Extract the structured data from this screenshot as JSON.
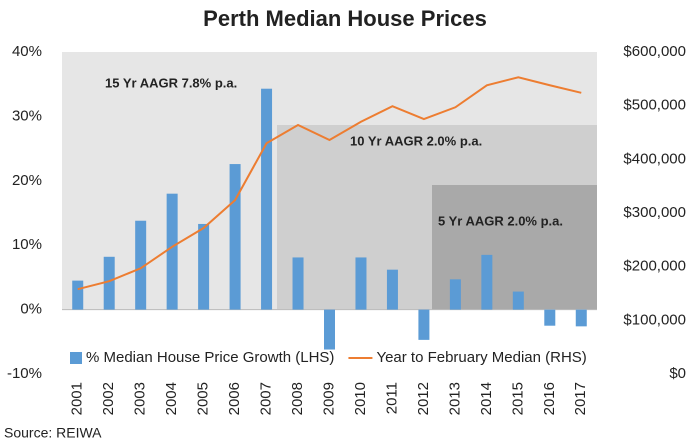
{
  "chart_data": {
    "type": "bar_line",
    "title": "Perth Median House Prices",
    "source": "Source: REIWA",
    "annotations": [
      "15 Yr AAGR 7.8% p.a.",
      "10 Yr AAGR 2.0% p.a.",
      "5 Yr AAGR 2.0% p.a."
    ],
    "categories": [
      "2001",
      "2002",
      "2003",
      "2004",
      "2005",
      "2006",
      "2007",
      "2008",
      "2009",
      "2010",
      "2011",
      "2012",
      "2013",
      "2014",
      "2015",
      "2016",
      "2017"
    ],
    "series": [
      {
        "name": "% Median House Price Growth (LHS)",
        "type": "bar",
        "color": "#5b9bd5",
        "values": [
          4.5,
          8.2,
          13.8,
          18.0,
          13.3,
          22.6,
          34.3,
          8.1,
          -6.2,
          8.1,
          6.2,
          -4.7,
          4.7,
          8.5,
          2.8,
          -2.5,
          -2.6
        ]
      },
      {
        "name": "Year to February Median (RHS)",
        "type": "line",
        "axis": "y2",
        "color": "#ed7d31",
        "values": [
          158000,
          173000,
          197000,
          237000,
          272000,
          324000,
          430000,
          464000,
          436000,
          470000,
          499000,
          475000,
          497000,
          538000,
          553000,
          538000,
          524000
        ]
      }
    ],
    "ylim": [
      -10,
      40
    ],
    "yticks": [
      {
        "value": -10,
        "label": "-10%"
      },
      {
        "value": 0,
        "label": "0%"
      },
      {
        "value": 10,
        "label": "10%"
      },
      {
        "value": 20,
        "label": "20%"
      },
      {
        "value": 30,
        "label": "30%"
      },
      {
        "value": 40,
        "label": "40%"
      }
    ],
    "y2lim": [
      0,
      600000
    ],
    "y2ticks": [
      {
        "value": 0,
        "label": "$0"
      },
      {
        "value": 100000,
        "label": "$100,000"
      },
      {
        "value": 200000,
        "label": "$200,000"
      },
      {
        "value": 300000,
        "label": "$300,000"
      },
      {
        "value": 400000,
        "label": "$400,000"
      },
      {
        "value": 500000,
        "label": "$500,000"
      },
      {
        "value": 600000,
        "label": "$600,000"
      }
    ],
    "legend": "bottom"
  }
}
